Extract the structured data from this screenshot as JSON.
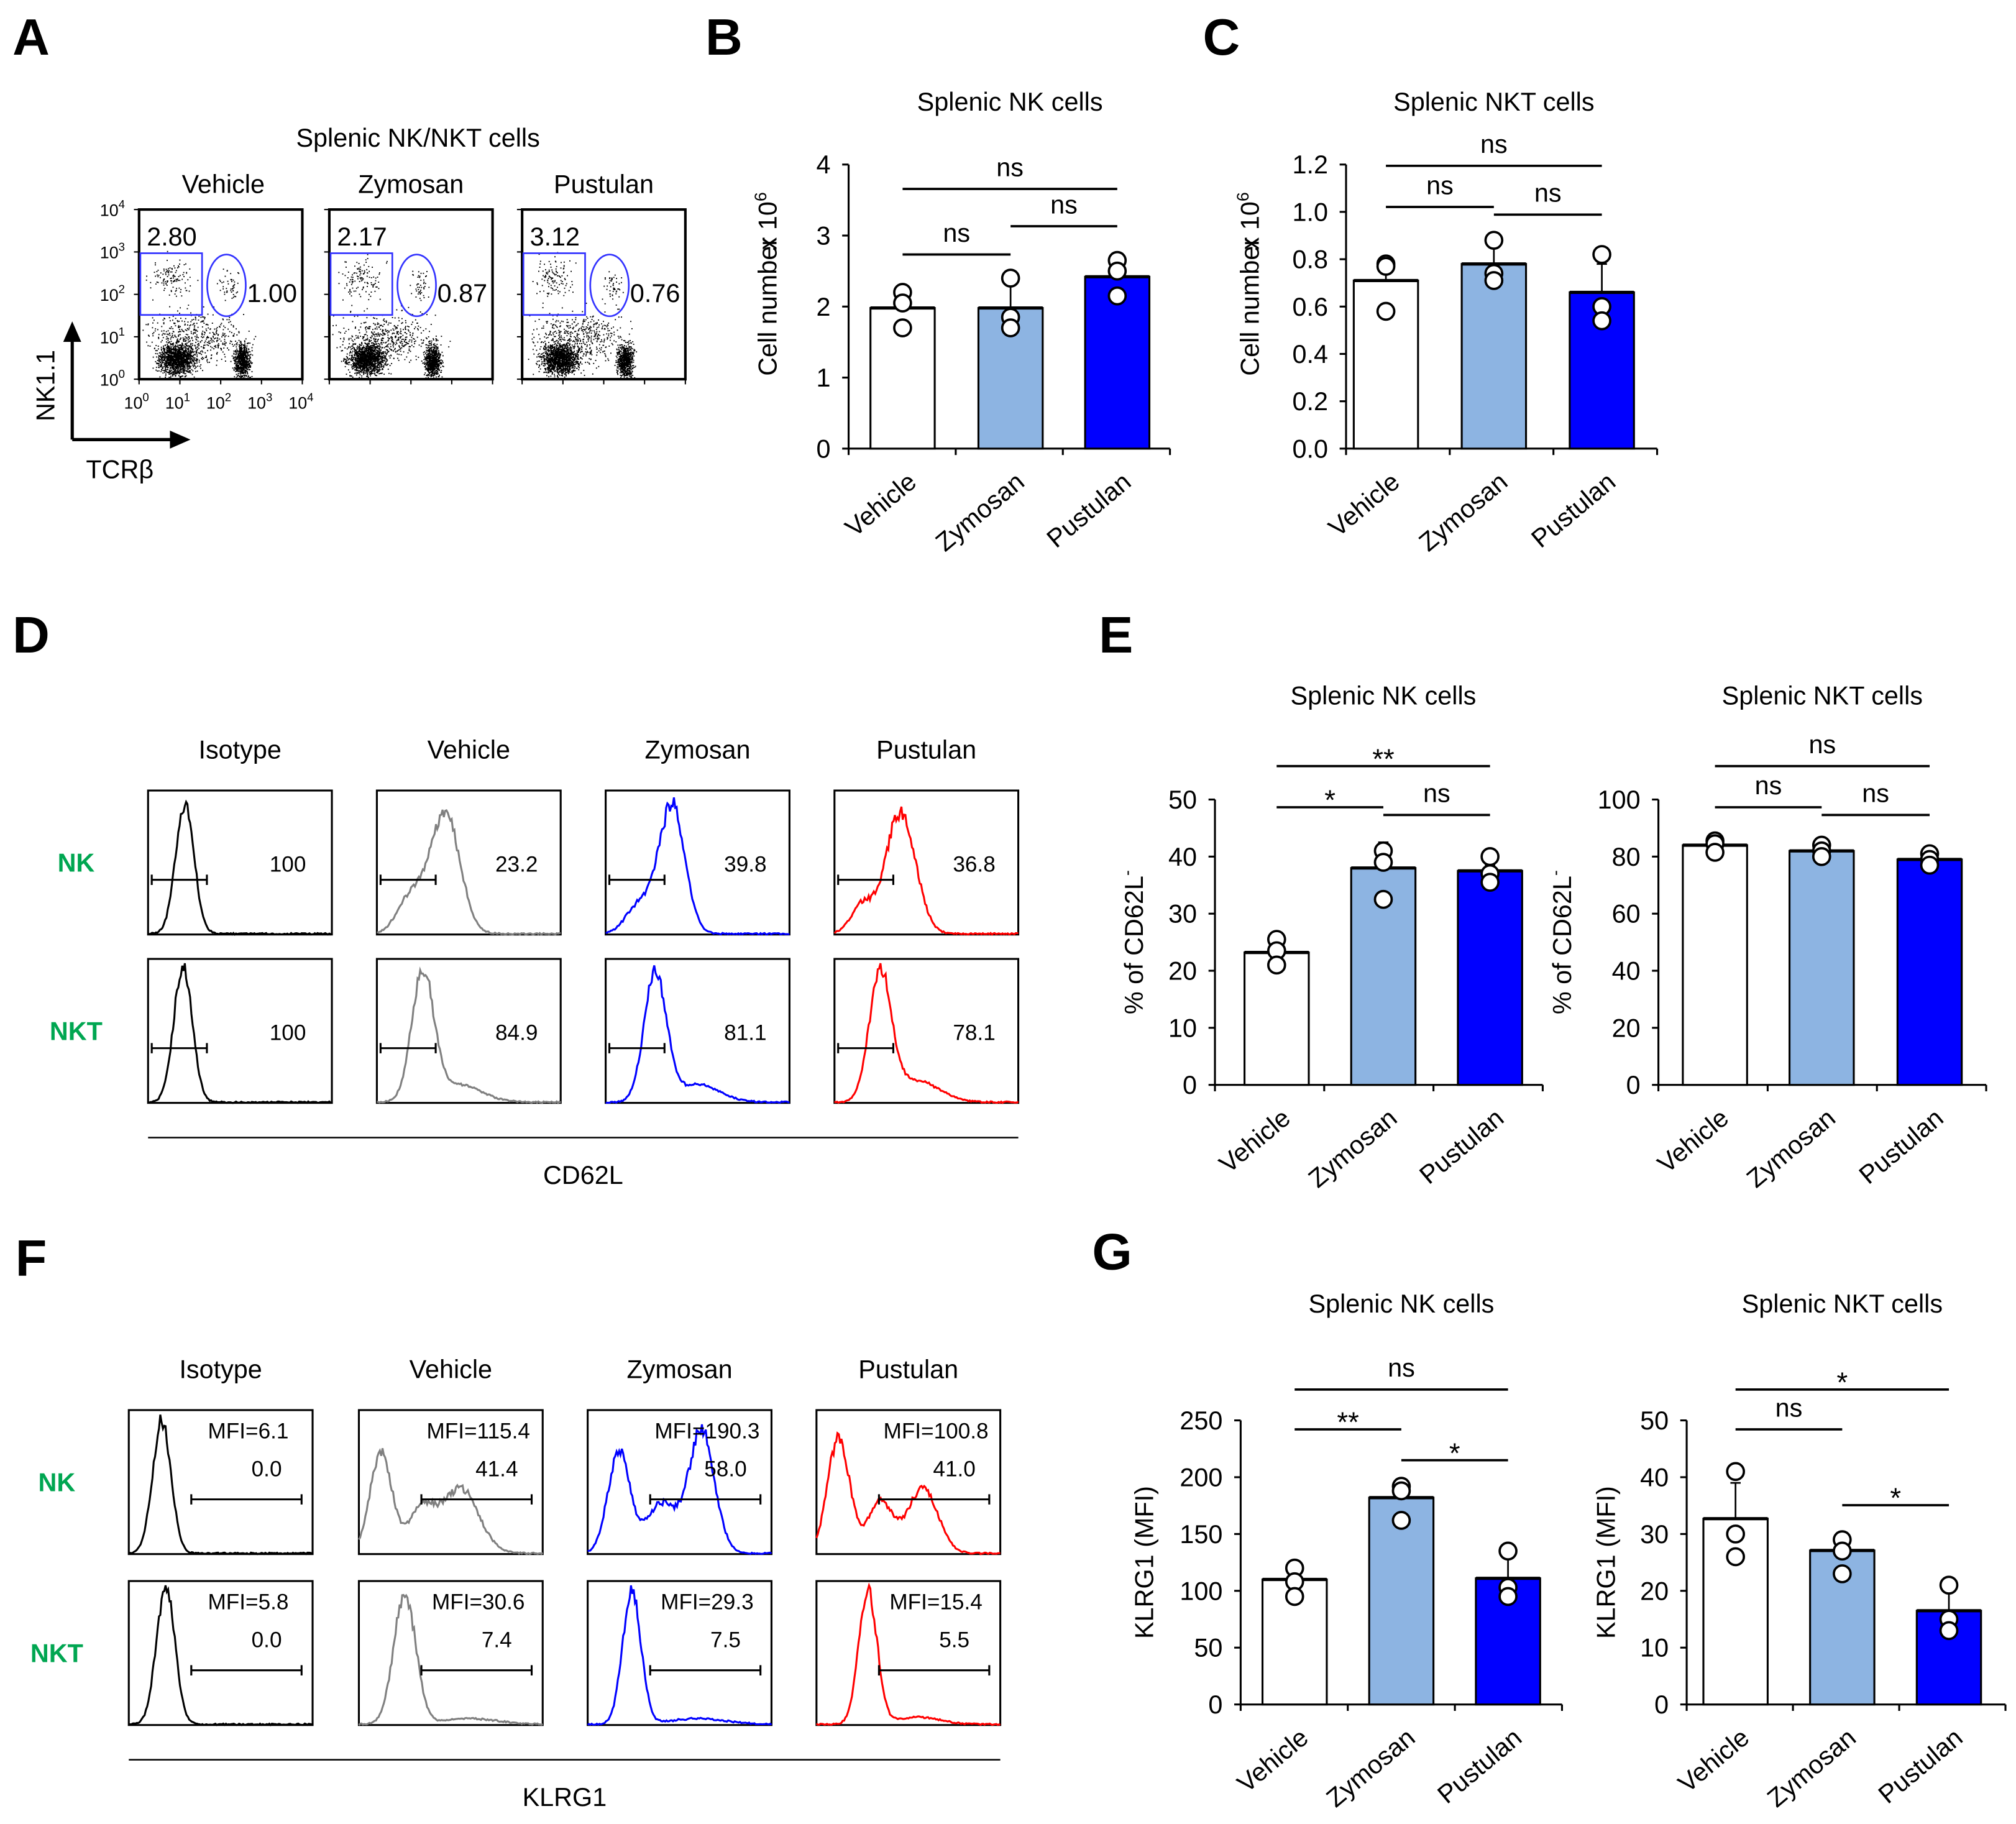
{
  "panel_letters": [
    "A",
    "B",
    "C",
    "D",
    "E",
    "F",
    "G"
  ],
  "colors": {
    "vehicle": "#ffffff",
    "zymosan": "#8db4e2",
    "pustulan": "#0000ff",
    "isotype_line": "#000000",
    "vehicle_line": "#808080",
    "zymosan_line": "#0000ff",
    "pustulan_line": "#ff0000",
    "gate": "#3333ff",
    "row_label": "#00a651"
  },
  "panel_a": {
    "title": "Splenic NK/NKT cells",
    "groups": [
      "Vehicle",
      "Zymosan",
      "Pustulan"
    ],
    "nk_pct": [
      "2.80",
      "2.17",
      "3.12"
    ],
    "nkt_pct": [
      "1.00",
      "0.87",
      "0.76"
    ],
    "tick_labels": [
      [
        "10",
        "0"
      ],
      [
        "10",
        "1"
      ],
      [
        "10",
        "2"
      ],
      [
        "10",
        "3"
      ],
      [
        "10",
        "4"
      ]
    ],
    "y_axis_label": "NK1.1",
    "x_axis_label": "TCRβ"
  },
  "panel_d": {
    "columns": [
      "Isotype",
      "Vehicle",
      "Zymosan",
      "Pustulan"
    ],
    "rows": [
      {
        "label": "NK",
        "values": [
          "100",
          "23.2",
          "39.8",
          "36.8"
        ]
      },
      {
        "label": "NKT",
        "values": [
          "100",
          "84.9",
          "81.1",
          "78.1"
        ]
      }
    ],
    "x_axis_label": "CD62L"
  },
  "panel_f": {
    "columns": [
      "Isotype",
      "Vehicle",
      "Zymosan",
      "Pustulan"
    ],
    "rows": [
      {
        "label": "NK",
        "mfi": [
          "MFI=6.1",
          "MFI=115.4",
          "MFI=190.3",
          "MFI=100.8"
        ],
        "values": [
          "0.0",
          "41.4",
          "58.0",
          "41.0"
        ]
      },
      {
        "label": "NKT",
        "mfi": [
          "MFI=5.8",
          "MFI=30.6",
          "MFI=29.3",
          "MFI=15.4"
        ],
        "values": [
          "0.0",
          "7.4",
          "7.5",
          "5.5"
        ]
      }
    ],
    "x_axis_label": "KLRG1"
  },
  "chart_data": [
    {
      "id": "B",
      "type": "bar",
      "title": "Splenic NK cells",
      "ylabel": "Cell number",
      "ylabel_multiplier": [
        "x 10",
        "6"
      ],
      "categories": [
        "Vehicle",
        "Zymosan",
        "Pustulan"
      ],
      "values": [
        1.98,
        1.98,
        2.42
      ],
      "errors": [
        0.25,
        0.35,
        0.2
      ],
      "points": [
        [
          2.2,
          2.05,
          1.7
        ],
        [
          2.4,
          1.85,
          1.7
        ],
        [
          2.65,
          2.5,
          2.15
        ]
      ],
      "ylim": [
        0,
        4
      ],
      "yticks": [
        "0",
        "1",
        "2",
        "3",
        "4"
      ],
      "significance": [
        {
          "groups": [
            0,
            2
          ],
          "label": "ns"
        },
        {
          "groups": [
            0,
            1
          ],
          "label": "ns"
        },
        {
          "groups": [
            1,
            2
          ],
          "label": "ns"
        }
      ]
    },
    {
      "id": "C",
      "type": "bar",
      "title": "Splenic NKT cells",
      "ylabel": "Cell number",
      "ylabel_multiplier": [
        "x 10",
        "6"
      ],
      "categories": [
        "Vehicle",
        "Zymosan",
        "Pustulan"
      ],
      "values": [
        0.71,
        0.78,
        0.66
      ],
      "errors": [
        0.06,
        0.09,
        0.12
      ],
      "points": [
        [
          0.78,
          0.77,
          0.58
        ],
        [
          0.88,
          0.74,
          0.71
        ],
        [
          0.82,
          0.6,
          0.54
        ]
      ],
      "ylim": [
        0,
        1.2
      ],
      "yticks": [
        "0.0",
        "0.2",
        "0.4",
        "0.6",
        "0.8",
        "1.0",
        "1.2"
      ],
      "significance": [
        {
          "groups": [
            0,
            2
          ],
          "label": "ns"
        },
        {
          "groups": [
            0,
            1
          ],
          "label": "ns"
        },
        {
          "groups": [
            1,
            2
          ],
          "label": "ns"
        }
      ]
    },
    {
      "id": "E1",
      "type": "bar",
      "title": "Splenic NK cells",
      "ylabel": "% of CD62L",
      "ylabel_sup": "-",
      "categories": [
        "Vehicle",
        "Zymosan",
        "Pustulan"
      ],
      "values": [
        23.2,
        38.0,
        37.5
      ],
      "errors": [
        1.5,
        4.5,
        1.0
      ],
      "points": [
        [
          25.5,
          23.5,
          21
        ],
        [
          41,
          39,
          32.5
        ],
        [
          40,
          37,
          35.5
        ]
      ],
      "ylim": [
        0,
        50
      ],
      "yticks": [
        "0",
        "10",
        "20",
        "30",
        "40",
        "50"
      ],
      "significance": [
        {
          "groups": [
            0,
            2
          ],
          "label": "**"
        },
        {
          "groups": [
            0,
            1
          ],
          "label": "*"
        },
        {
          "groups": [
            1,
            2
          ],
          "label": "ns"
        }
      ]
    },
    {
      "id": "E2",
      "type": "bar",
      "title": "Splenic NKT cells",
      "ylabel": "% of CD62L",
      "ylabel_sup": "-",
      "categories": [
        "Vehicle",
        "Zymosan",
        "Pustulan"
      ],
      "values": [
        84,
        82,
        79
      ],
      "errors": [
        1,
        1,
        1.5
      ],
      "points": [
        [
          85.5,
          84.5,
          81.5
        ],
        [
          84,
          82,
          80
        ],
        [
          81,
          79,
          77
        ]
      ],
      "ylim": [
        0,
        100
      ],
      "yticks": [
        "0",
        "20",
        "40",
        "60",
        "80",
        "100"
      ],
      "significance": [
        {
          "groups": [
            0,
            2
          ],
          "label": "ns"
        },
        {
          "groups": [
            0,
            1
          ],
          "label": "ns"
        },
        {
          "groups": [
            1,
            2
          ],
          "label": "ns"
        }
      ]
    },
    {
      "id": "G1",
      "type": "bar",
      "title": "Splenic NK cells",
      "ylabel": "KLRG1 (MFI)",
      "categories": [
        "Vehicle",
        "Zymosan",
        "Pustulan"
      ],
      "values": [
        110,
        182,
        111
      ],
      "errors": [
        10,
        15,
        20
      ],
      "points": [
        [
          120,
          108,
          95
        ],
        [
          192,
          188,
          162
        ],
        [
          135,
          103,
          95
        ]
      ],
      "ylim": [
        0,
        250
      ],
      "yticks": [
        "0",
        "50",
        "100",
        "150",
        "200",
        "250"
      ],
      "significance": [
        {
          "groups": [
            0,
            2
          ],
          "label": "ns"
        },
        {
          "groups": [
            0,
            1
          ],
          "label": "**"
        },
        {
          "groups": [
            1,
            2
          ],
          "label": "*"
        }
      ]
    },
    {
      "id": "G2",
      "type": "bar",
      "title": "Splenic NKT cells",
      "ylabel": "KLRG1 (MFI)",
      "categories": [
        "Vehicle",
        "Zymosan",
        "Pustulan"
      ],
      "values": [
        32.7,
        27.1,
        16.5
      ],
      "errors": [
        6.3,
        2.5,
        3.5
      ],
      "points": [
        [
          41,
          30,
          26
        ],
        [
          29,
          27,
          23
        ],
        [
          21,
          15,
          13
        ]
      ],
      "ylim": [
        0,
        50
      ],
      "yticks": [
        "0",
        "10",
        "20",
        "30",
        "40",
        "50"
      ],
      "significance": [
        {
          "groups": [
            0,
            2
          ],
          "label": "*"
        },
        {
          "groups": [
            0,
            1
          ],
          "label": "ns"
        },
        {
          "groups": [
            1,
            2
          ],
          "label": "*"
        }
      ]
    }
  ]
}
